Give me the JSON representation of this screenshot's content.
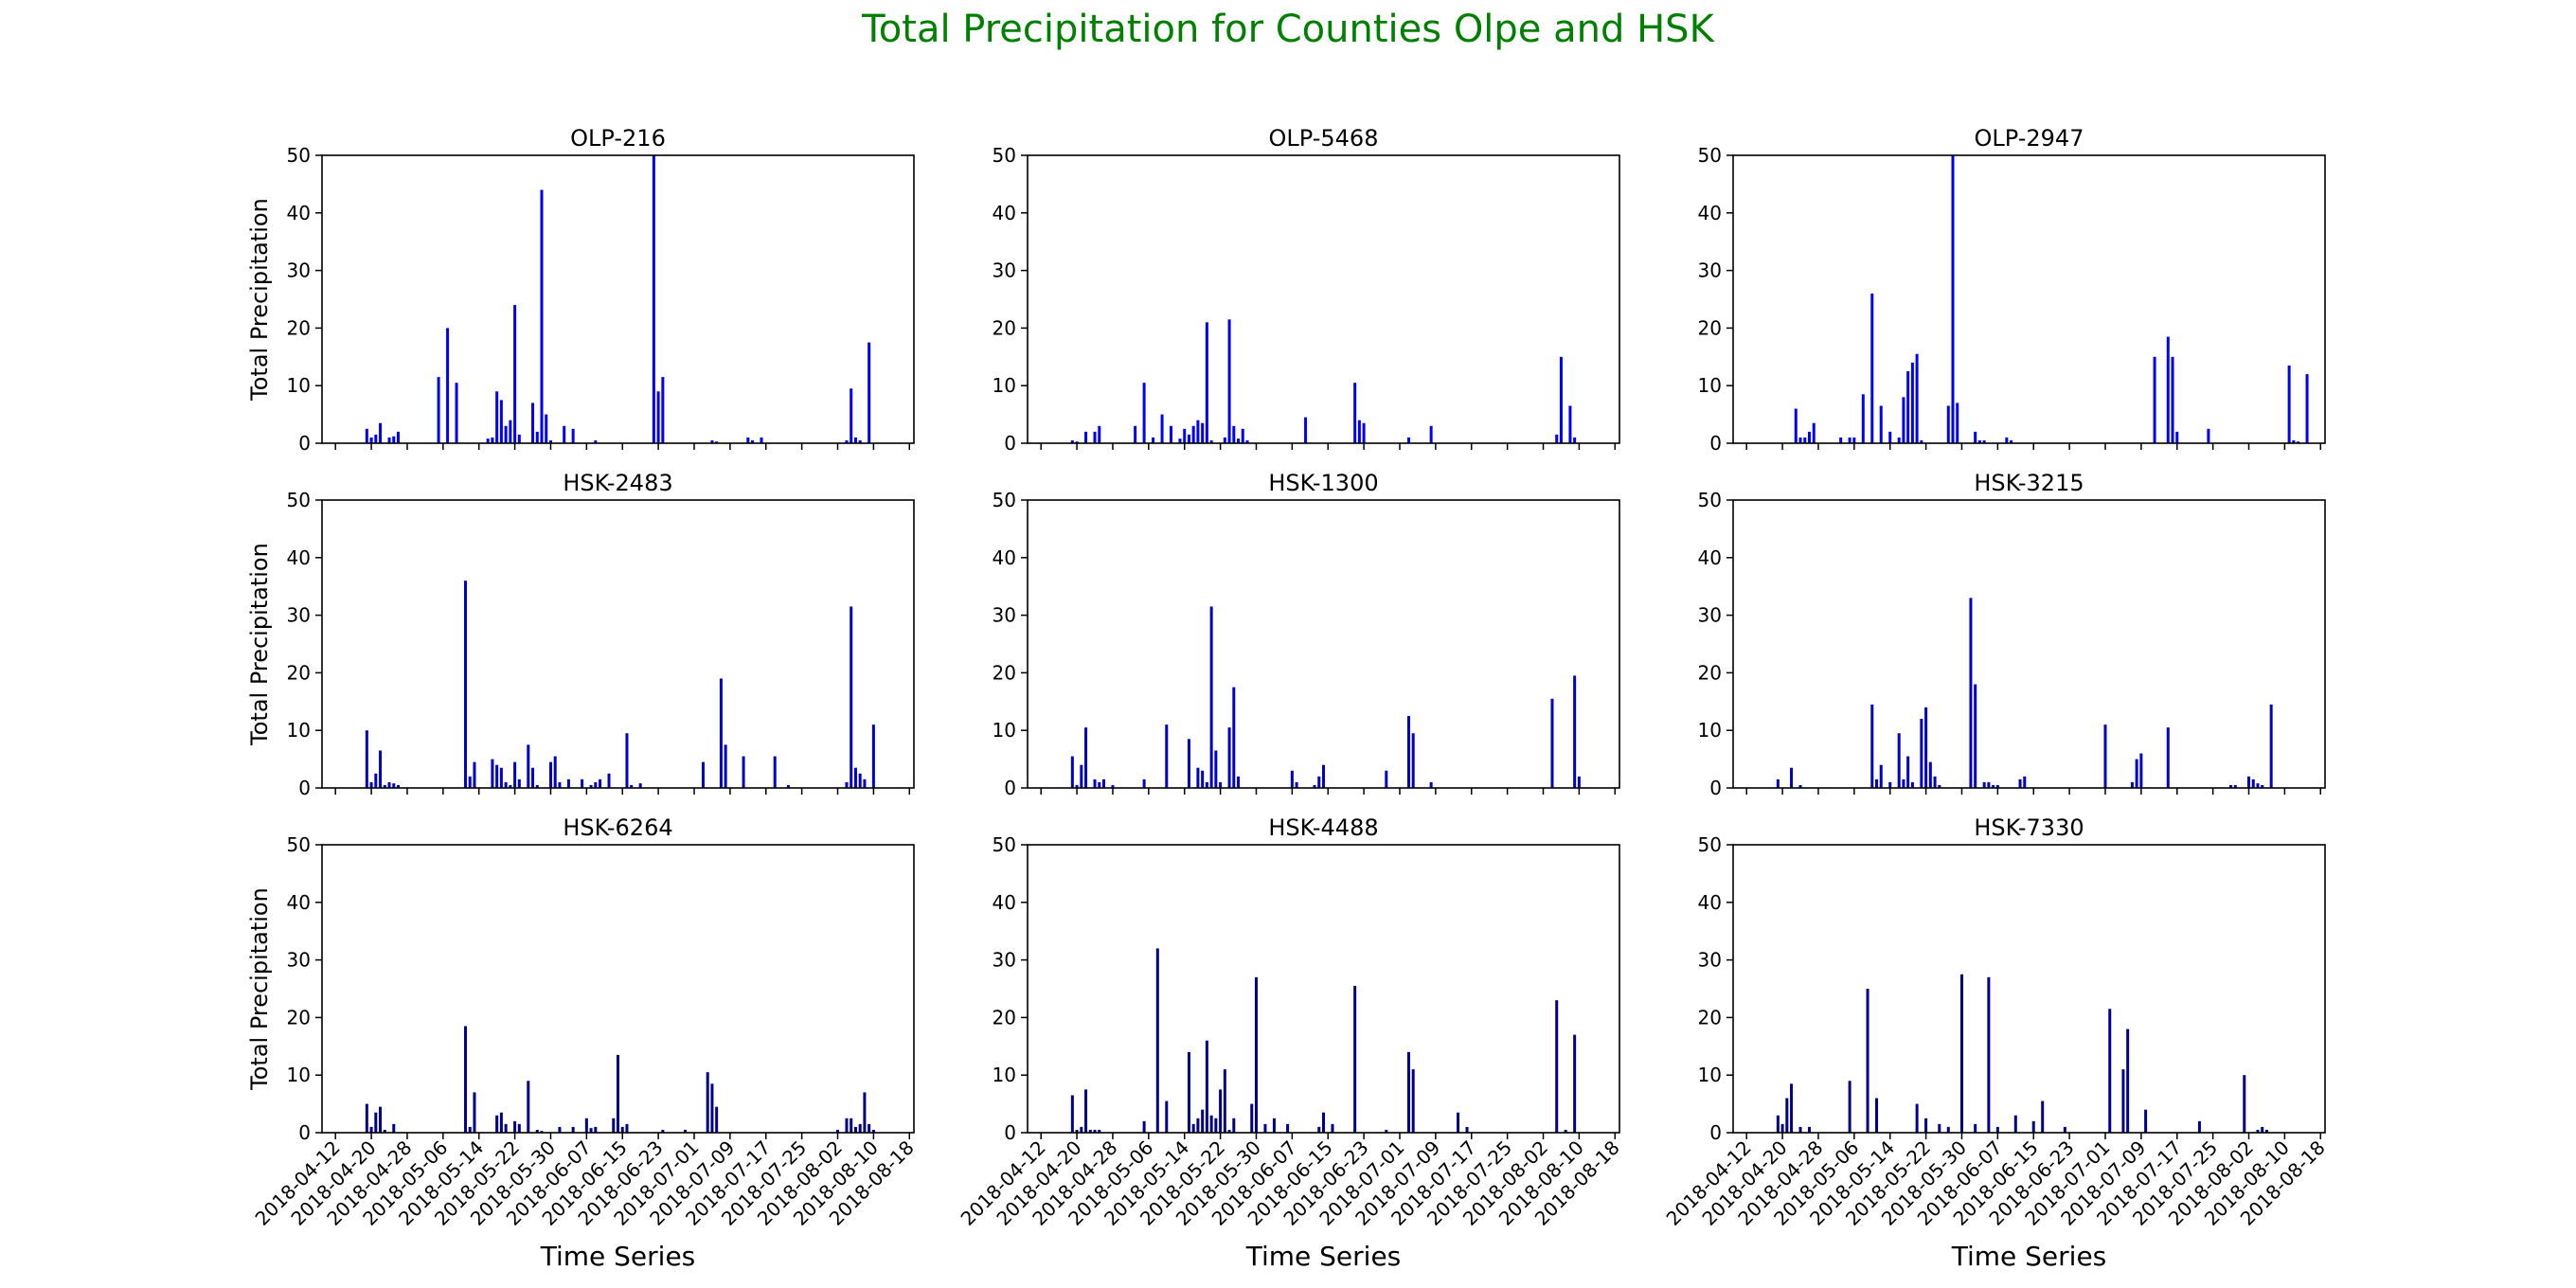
{
  "figure": {
    "title": "Total Precipitation for Counties Olpe and HSK",
    "title_color": "#008000"
  },
  "chart_data": {
    "type": "bar",
    "layout": "3x3 grid of subplots, shared x axis (dates) and shared y axis",
    "shared": {
      "xlabel": "Time Series",
      "ylabel": "Total Precipitation",
      "ylim": [
        0,
        50
      ],
      "yticks": [
        0,
        10,
        20,
        30,
        40,
        50
      ],
      "xlim": [
        "2018-04-09",
        "2018-08-19"
      ],
      "xticks": [
        "2018-04-12",
        "2018-04-20",
        "2018-04-28",
        "2018-05-06",
        "2018-05-14",
        "2018-05-22",
        "2018-05-30",
        "2018-06-07",
        "2018-06-15",
        "2018-06-23",
        "2018-07-01",
        "2018-07-09",
        "2018-07-17",
        "2018-07-25",
        "2018-08-02",
        "2018-08-10",
        "2018-08-18"
      ],
      "grid": false,
      "legend": "none"
    },
    "panels": [
      {
        "title": "OLP-216",
        "color": "#0000ff",
        "dates": [
          "2018-04-19",
          "2018-04-20",
          "2018-04-21",
          "2018-04-22",
          "2018-04-24",
          "2018-04-25",
          "2018-04-26",
          "2018-05-05",
          "2018-05-07",
          "2018-05-09",
          "2018-05-16",
          "2018-05-17",
          "2018-05-18",
          "2018-05-19",
          "2018-05-20",
          "2018-05-21",
          "2018-05-22",
          "2018-05-23",
          "2018-05-26",
          "2018-05-27",
          "2018-05-28",
          "2018-05-29",
          "2018-05-30",
          "2018-06-02",
          "2018-06-04",
          "2018-06-09",
          "2018-06-22",
          "2018-06-23",
          "2018-06-24",
          "2018-07-05",
          "2018-07-06",
          "2018-07-13",
          "2018-07-14",
          "2018-07-16",
          "2018-08-04",
          "2018-08-05",
          "2018-08-06",
          "2018-08-07",
          "2018-08-09"
        ],
        "values": [
          2.5,
          1.0,
          1.5,
          3.5,
          1.0,
          1.2,
          2.0,
          11.5,
          20.0,
          10.5,
          0.8,
          1.0,
          9.0,
          7.5,
          3.0,
          4.0,
          24.0,
          1.5,
          7.0,
          2.0,
          44.0,
          5.0,
          0.5,
          3.0,
          2.5,
          0.5,
          50.0,
          9.0,
          11.5,
          0.5,
          0.3,
          1.0,
          0.5,
          1.0,
          0.5,
          9.5,
          1.0,
          0.5,
          17.5
        ]
      },
      {
        "title": "OLP-5468",
        "color": "#0000ff",
        "dates": [
          "2018-04-19",
          "2018-04-20",
          "2018-04-22",
          "2018-04-24",
          "2018-04-25",
          "2018-05-03",
          "2018-05-05",
          "2018-05-07",
          "2018-05-09",
          "2018-05-11",
          "2018-05-13",
          "2018-05-14",
          "2018-05-15",
          "2018-05-16",
          "2018-05-17",
          "2018-05-18",
          "2018-05-19",
          "2018-05-20",
          "2018-05-23",
          "2018-05-24",
          "2018-05-25",
          "2018-05-26",
          "2018-05-27",
          "2018-05-28",
          "2018-06-10",
          "2018-06-21",
          "2018-06-22",
          "2018-06-23",
          "2018-07-03",
          "2018-07-08",
          "2018-08-05",
          "2018-08-06",
          "2018-08-08",
          "2018-08-09"
        ],
        "values": [
          0.5,
          0.3,
          2.0,
          2.0,
          3.0,
          3.0,
          10.5,
          1.0,
          5.0,
          3.0,
          0.8,
          2.5,
          1.5,
          3.0,
          4.0,
          3.5,
          21.0,
          0.5,
          1.0,
          21.5,
          3.0,
          0.8,
          2.5,
          0.5,
          4.5,
          10.5,
          4.0,
          3.5,
          1.0,
          3.0,
          1.5,
          15.0,
          6.5,
          1.0
        ]
      },
      {
        "title": "OLP-2947",
        "color": "#0000ff",
        "dates": [
          "2018-04-23",
          "2018-04-24",
          "2018-04-25",
          "2018-04-26",
          "2018-04-27",
          "2018-05-03",
          "2018-05-05",
          "2018-05-06",
          "2018-05-08",
          "2018-05-10",
          "2018-05-12",
          "2018-05-14",
          "2018-05-16",
          "2018-05-17",
          "2018-05-18",
          "2018-05-19",
          "2018-05-20",
          "2018-05-21",
          "2018-05-27",
          "2018-05-28",
          "2018-05-29",
          "2018-06-02",
          "2018-06-03",
          "2018-06-04",
          "2018-06-09",
          "2018-06-10",
          "2018-07-12",
          "2018-07-15",
          "2018-07-16",
          "2018-07-17",
          "2018-07-24",
          "2018-08-11",
          "2018-08-12",
          "2018-08-13",
          "2018-08-15"
        ],
        "values": [
          6.0,
          1.0,
          1.0,
          2.0,
          3.5,
          1.0,
          1.0,
          1.0,
          8.5,
          26.0,
          6.5,
          2.0,
          1.0,
          8.0,
          12.5,
          14.0,
          15.5,
          0.5,
          6.5,
          50.0,
          7.0,
          2.0,
          0.5,
          0.5,
          1.0,
          0.5,
          15.0,
          18.5,
          15.0,
          2.0,
          2.5,
          13.5,
          0.5,
          0.3,
          12.0
        ]
      },
      {
        "title": "HSK-2483",
        "color": "#0000cd",
        "dates": [
          "2018-04-19",
          "2018-04-20",
          "2018-04-21",
          "2018-04-22",
          "2018-04-23",
          "2018-04-24",
          "2018-04-25",
          "2018-04-26",
          "2018-05-11",
          "2018-05-12",
          "2018-05-13",
          "2018-05-17",
          "2018-05-18",
          "2018-05-19",
          "2018-05-20",
          "2018-05-21",
          "2018-05-22",
          "2018-05-23",
          "2018-05-25",
          "2018-05-26",
          "2018-05-27",
          "2018-05-30",
          "2018-05-31",
          "2018-06-01",
          "2018-06-03",
          "2018-06-06",
          "2018-06-08",
          "2018-06-09",
          "2018-06-10",
          "2018-06-12",
          "2018-06-16",
          "2018-06-17",
          "2018-06-19",
          "2018-07-03",
          "2018-07-07",
          "2018-07-08",
          "2018-07-12",
          "2018-07-19",
          "2018-07-22",
          "2018-08-04",
          "2018-08-05",
          "2018-08-06",
          "2018-08-07",
          "2018-08-08",
          "2018-08-10"
        ],
        "values": [
          10.0,
          1.0,
          2.5,
          6.5,
          0.5,
          1.0,
          0.8,
          0.5,
          36.0,
          2.0,
          4.5,
          5.0,
          4.0,
          3.5,
          1.0,
          0.5,
          4.5,
          1.5,
          7.5,
          3.5,
          0.5,
          4.5,
          5.5,
          1.0,
          1.5,
          1.5,
          0.5,
          1.0,
          1.5,
          2.5,
          9.5,
          0.5,
          0.8,
          4.5,
          19.0,
          7.5,
          5.5,
          5.5,
          0.5,
          1.0,
          31.5,
          3.5,
          2.5,
          1.5,
          11.0
        ]
      },
      {
        "title": "HSK-1300",
        "color": "#0000cd",
        "dates": [
          "2018-04-19",
          "2018-04-20",
          "2018-04-21",
          "2018-04-22",
          "2018-04-24",
          "2018-04-25",
          "2018-04-26",
          "2018-04-28",
          "2018-05-05",
          "2018-05-10",
          "2018-05-15",
          "2018-05-17",
          "2018-05-18",
          "2018-05-19",
          "2018-05-20",
          "2018-05-21",
          "2018-05-22",
          "2018-05-24",
          "2018-05-25",
          "2018-05-26",
          "2018-06-07",
          "2018-06-08",
          "2018-06-12",
          "2018-06-13",
          "2018-06-14",
          "2018-06-28",
          "2018-07-03",
          "2018-07-04",
          "2018-07-08",
          "2018-08-04",
          "2018-08-09",
          "2018-08-10"
        ],
        "values": [
          5.5,
          0.5,
          4.0,
          10.5,
          1.5,
          1.0,
          1.5,
          0.5,
          1.5,
          11.0,
          8.5,
          3.5,
          3.0,
          1.0,
          31.5,
          6.5,
          1.0,
          10.5,
          17.5,
          2.0,
          3.0,
          1.0,
          0.5,
          2.0,
          4.0,
          3.0,
          12.5,
          9.5,
          1.0,
          15.5,
          19.5,
          2.0
        ]
      },
      {
        "title": "HSK-3215",
        "color": "#0000cd",
        "dates": [
          "2018-04-19",
          "2018-04-22",
          "2018-04-24",
          "2018-05-10",
          "2018-05-11",
          "2018-05-12",
          "2018-05-14",
          "2018-05-16",
          "2018-05-17",
          "2018-05-18",
          "2018-05-19",
          "2018-05-21",
          "2018-05-22",
          "2018-05-23",
          "2018-05-24",
          "2018-05-25",
          "2018-06-01",
          "2018-06-02",
          "2018-06-04",
          "2018-06-05",
          "2018-06-06",
          "2018-06-07",
          "2018-06-12",
          "2018-06-13",
          "2018-07-01",
          "2018-07-07",
          "2018-07-08",
          "2018-07-09",
          "2018-07-15",
          "2018-07-29",
          "2018-07-30",
          "2018-08-02",
          "2018-08-03",
          "2018-08-04",
          "2018-08-05",
          "2018-08-07"
        ],
        "values": [
          1.5,
          3.5,
          0.5,
          14.5,
          1.5,
          4.0,
          1.0,
          9.5,
          1.5,
          5.5,
          1.0,
          12.0,
          14.0,
          4.5,
          2.0,
          0.5,
          33.0,
          18.0,
          1.0,
          1.0,
          0.5,
          0.5,
          1.5,
          2.0,
          11.0,
          1.0,
          5.0,
          6.0,
          10.5,
          0.5,
          0.5,
          2.0,
          1.5,
          0.8,
          0.5,
          14.5
        ]
      },
      {
        "title": "HSK-6264",
        "color": "#00008b",
        "dates": [
          "2018-04-19",
          "2018-04-20",
          "2018-04-21",
          "2018-04-22",
          "2018-04-23",
          "2018-04-25",
          "2018-05-11",
          "2018-05-12",
          "2018-05-13",
          "2018-05-18",
          "2018-05-19",
          "2018-05-20",
          "2018-05-22",
          "2018-05-23",
          "2018-05-25",
          "2018-05-27",
          "2018-05-28",
          "2018-06-01",
          "2018-06-04",
          "2018-06-07",
          "2018-06-08",
          "2018-06-09",
          "2018-06-13",
          "2018-06-14",
          "2018-06-15",
          "2018-06-16",
          "2018-06-24",
          "2018-06-29",
          "2018-07-04",
          "2018-07-05",
          "2018-07-06",
          "2018-08-02",
          "2018-08-04",
          "2018-08-05",
          "2018-08-06",
          "2018-08-07",
          "2018-08-08",
          "2018-08-09",
          "2018-08-10"
        ],
        "values": [
          5.0,
          1.0,
          3.5,
          4.5,
          0.5,
          1.5,
          18.5,
          1.0,
          7.0,
          3.0,
          3.5,
          1.5,
          2.0,
          1.5,
          9.0,
          0.5,
          0.3,
          1.0,
          1.0,
          2.5,
          0.8,
          1.0,
          2.5,
          13.5,
          1.0,
          1.5,
          0.5,
          0.5,
          10.5,
          8.5,
          4.5,
          0.5,
          2.5,
          2.5,
          1.0,
          1.5,
          7.0,
          1.5,
          0.5
        ]
      },
      {
        "title": "HSK-4488",
        "color": "#00008b",
        "dates": [
          "2018-04-19",
          "2018-04-20",
          "2018-04-21",
          "2018-04-22",
          "2018-04-23",
          "2018-04-24",
          "2018-04-25",
          "2018-05-05",
          "2018-05-08",
          "2018-05-10",
          "2018-05-15",
          "2018-05-16",
          "2018-05-17",
          "2018-05-18",
          "2018-05-19",
          "2018-05-20",
          "2018-05-21",
          "2018-05-22",
          "2018-05-23",
          "2018-05-24",
          "2018-05-25",
          "2018-05-29",
          "2018-05-30",
          "2018-06-01",
          "2018-06-03",
          "2018-06-06",
          "2018-06-13",
          "2018-06-14",
          "2018-06-16",
          "2018-06-21",
          "2018-06-28",
          "2018-07-03",
          "2018-07-04",
          "2018-07-14",
          "2018-07-16",
          "2018-08-05",
          "2018-08-07",
          "2018-08-09"
        ],
        "values": [
          6.5,
          0.5,
          1.0,
          7.5,
          0.5,
          0.5,
          0.5,
          2.0,
          32.0,
          5.5,
          14.0,
          1.5,
          2.5,
          4.0,
          16.0,
          3.0,
          2.5,
          7.5,
          11.0,
          0.5,
          2.5,
          5.0,
          27.0,
          1.5,
          2.5,
          1.5,
          1.0,
          3.5,
          1.5,
          25.5,
          0.5,
          14.0,
          11.0,
          3.5,
          1.0,
          23.0,
          0.5,
          17.0
        ]
      },
      {
        "title": "HSK-7330",
        "color": "#00008b",
        "dates": [
          "2018-04-19",
          "2018-04-20",
          "2018-04-21",
          "2018-04-22",
          "2018-04-24",
          "2018-04-26",
          "2018-05-05",
          "2018-05-09",
          "2018-05-11",
          "2018-05-20",
          "2018-05-22",
          "2018-05-25",
          "2018-05-27",
          "2018-05-30",
          "2018-06-02",
          "2018-06-05",
          "2018-06-07",
          "2018-06-11",
          "2018-06-15",
          "2018-06-17",
          "2018-06-22",
          "2018-07-02",
          "2018-07-05",
          "2018-07-06",
          "2018-07-10",
          "2018-07-22",
          "2018-08-01",
          "2018-08-04",
          "2018-08-05",
          "2018-08-06"
        ],
        "values": [
          3.0,
          1.5,
          6.0,
          8.5,
          1.0,
          1.0,
          9.0,
          25.0,
          6.0,
          5.0,
          2.5,
          1.5,
          1.0,
          27.5,
          1.5,
          27.0,
          1.0,
          3.0,
          2.0,
          5.5,
          1.0,
          21.5,
          11.0,
          18.0,
          4.0,
          2.0,
          10.0,
          0.5,
          1.0,
          0.5
        ]
      }
    ]
  }
}
